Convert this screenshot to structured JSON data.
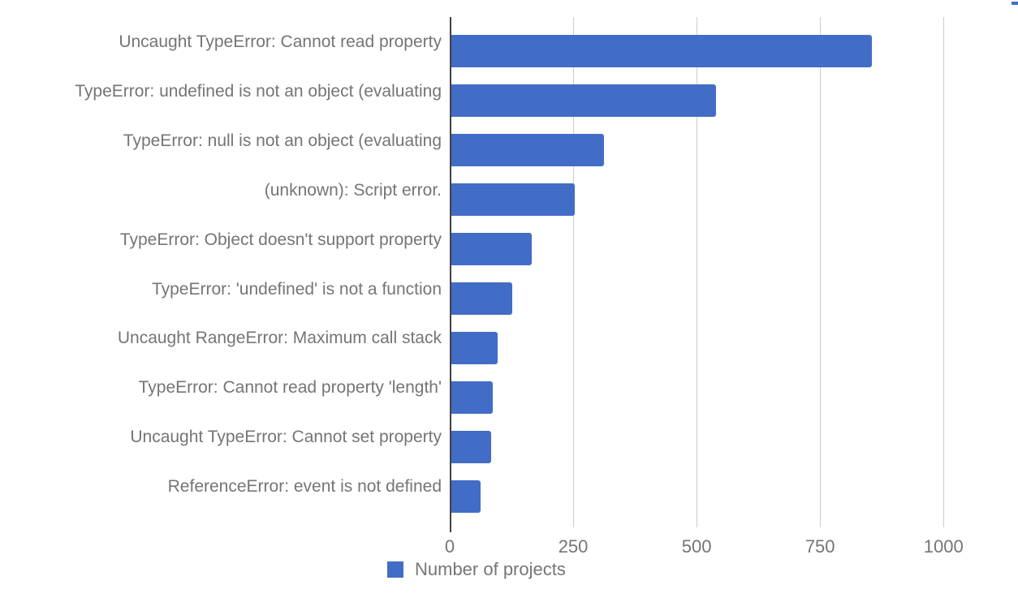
{
  "chart_data": {
    "type": "bar",
    "orientation": "horizontal",
    "categories": [
      "Uncaught TypeError: Cannot read property",
      "TypeError: undefined is not an object (evaluating",
      "TypeError: null is not an object (evaluating",
      "(unknown): Script error.",
      "TypeError: Object doesn't support property",
      "TypeError: 'undefined' is not a function",
      "Uncaught RangeError: Maximum call stack",
      "TypeError: Cannot read property 'length'",
      "Uncaught TypeError: Cannot set property",
      "ReferenceError: event is not defined"
    ],
    "series": [
      {
        "name": "Number of projects",
        "values": [
          855,
          540,
          312,
          253,
          166,
          127,
          97,
          87,
          84,
          62
        ]
      }
    ],
    "title": "",
    "xlabel": "",
    "ylabel": "",
    "xticks": [
      0,
      250,
      500,
      750,
      1000
    ],
    "xtick_labels": [
      "0",
      "250",
      "500",
      "750",
      "1000"
    ],
    "xlim": [
      0,
      1141
    ],
    "grid": true,
    "legend_position": "bottom",
    "colors": {
      "bar": "#426DC6",
      "label_text": "#757575",
      "tick_text": "#757575",
      "gridline": "#cccccc",
      "axis_line": "#424242"
    }
  }
}
